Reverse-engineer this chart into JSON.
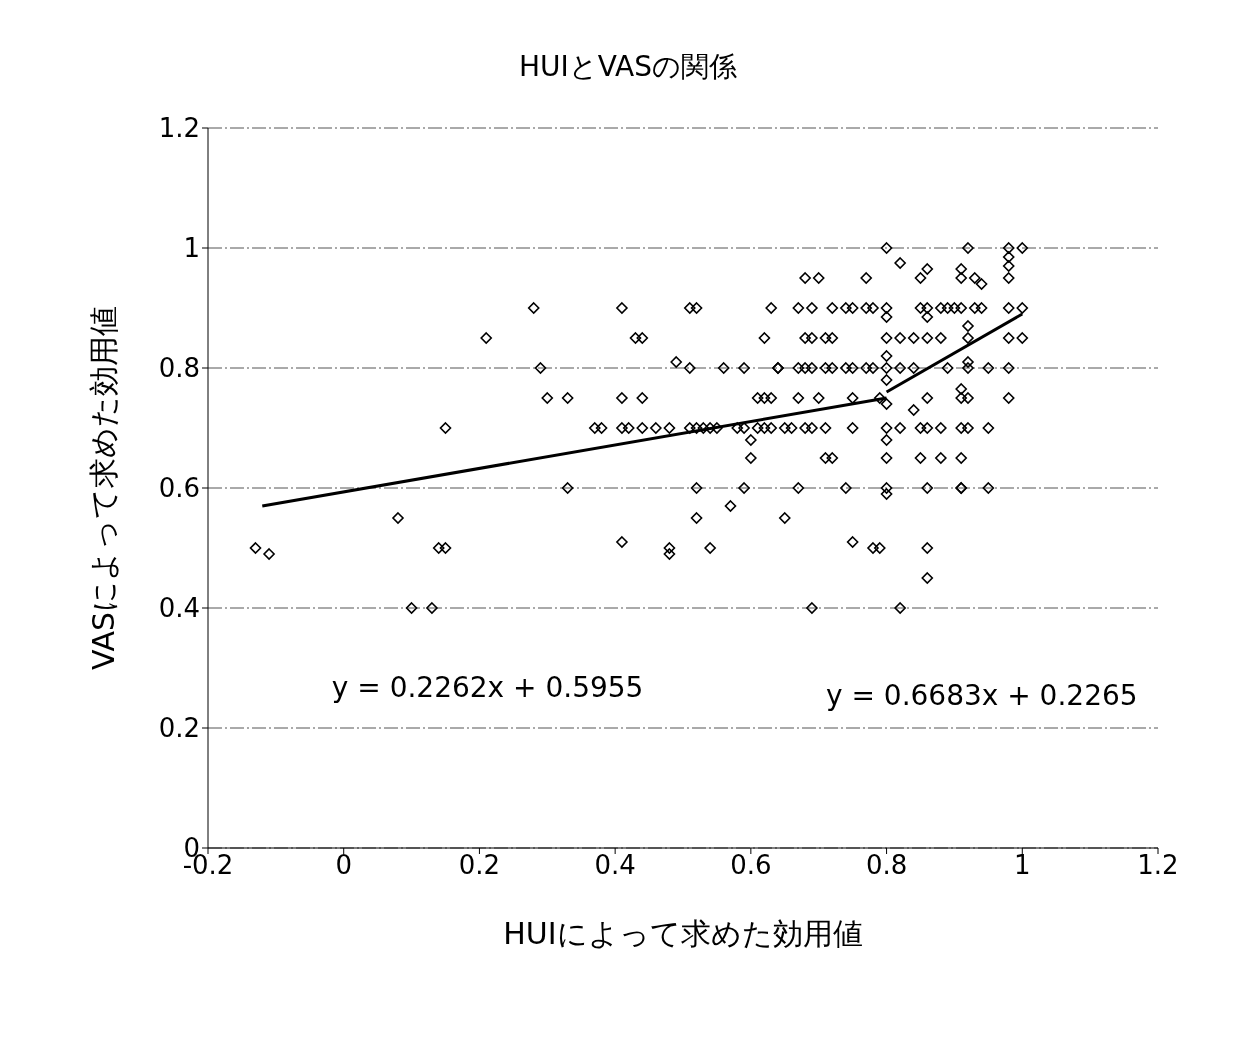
{
  "chart_data": {
    "type": "scatter",
    "title": "HUIとVASの関係",
    "xlabel": "HUIによって求めた効用値",
    "ylabel": "VASによって求めた効用値",
    "annotations": [
      "y = 0.2262x + 0.5955",
      "y = 0.6683x + 0.2265"
    ],
    "xlim": [
      -0.2,
      1.2
    ],
    "xticks": [
      -0.2,
      0,
      0.2,
      0.4,
      0.6,
      0.8,
      1,
      1.2
    ],
    "ylim": [
      0,
      1.2
    ],
    "yticks": [
      0,
      0.2,
      0.4,
      0.6,
      0.8,
      1,
      1.2
    ],
    "grid": "y",
    "series": [
      {
        "color": "#000000",
        "marker": "diamond",
        "x": [
          0.8,
          0.92,
          0.98,
          1.0,
          0.98,
          0.98,
          0.82,
          0.68,
          0.7,
          0.77,
          0.86,
          0.85,
          0.91,
          0.91,
          0.93,
          0.94,
          0.98,
          0.28,
          0.41,
          0.51,
          0.52,
          0.63,
          0.67,
          0.69,
          0.72,
          0.74,
          0.75,
          0.77,
          0.78,
          0.8,
          0.85,
          0.86,
          0.88,
          0.89,
          0.9,
          0.91,
          0.93,
          0.94,
          0.98,
          1.0,
          0.8,
          0.86,
          0.21,
          0.43,
          0.44,
          0.62,
          0.68,
          0.69,
          0.71,
          0.72,
          0.8,
          0.82,
          0.84,
          0.86,
          0.88,
          0.92,
          0.92,
          0.98,
          1.0,
          0.29,
          0.49,
          0.51,
          0.56,
          0.59,
          0.64,
          0.64,
          0.67,
          0.68,
          0.69,
          0.71,
          0.72,
          0.74,
          0.75,
          0.77,
          0.78,
          0.8,
          0.82,
          0.84,
          0.92,
          0.89,
          0.92,
          0.95,
          0.98,
          0.8,
          0.8,
          0.3,
          0.33,
          0.41,
          0.44,
          0.61,
          0.62,
          0.63,
          0.67,
          0.7,
          0.75,
          0.79,
          0.8,
          0.84,
          0.86,
          0.91,
          0.91,
          0.92,
          0.98,
          0.15,
          0.37,
          0.38,
          0.41,
          0.42,
          0.44,
          0.46,
          0.48,
          0.51,
          0.52,
          0.53,
          0.54,
          0.55,
          0.58,
          0.59,
          0.61,
          0.62,
          0.63,
          0.65,
          0.66,
          0.68,
          0.69,
          0.71,
          0.75,
          0.8,
          0.82,
          0.85,
          0.86,
          0.88,
          0.91,
          0.92,
          0.95,
          0.6,
          0.8,
          0.6,
          0.71,
          0.72,
          0.8,
          0.85,
          0.88,
          0.91,
          0.33,
          0.52,
          0.59,
          0.67,
          0.74,
          0.8,
          0.8,
          0.86,
          0.91,
          0.91,
          0.95,
          0.08,
          0.52,
          0.65,
          0.57,
          -0.13,
          -0.11,
          0.14,
          0.15,
          0.41,
          0.48,
          0.48,
          0.54,
          0.75,
          0.78,
          0.79,
          0.86,
          0.86,
          0.1,
          0.13,
          0.69,
          0.82
        ],
        "values": [
          1,
          1,
          1,
          1,
          0.985,
          0.97,
          0.975,
          0.95,
          0.95,
          0.95,
          0.965,
          0.95,
          0.965,
          0.95,
          0.95,
          0.94,
          0.95,
          0.9,
          0.9,
          0.9,
          0.9,
          0.9,
          0.9,
          0.9,
          0.9,
          0.9,
          0.9,
          0.9,
          0.9,
          0.9,
          0.9,
          0.9,
          0.9,
          0.9,
          0.9,
          0.9,
          0.9,
          0.9,
          0.9,
          0.9,
          0.885,
          0.885,
          0.85,
          0.85,
          0.85,
          0.85,
          0.85,
          0.85,
          0.85,
          0.85,
          0.85,
          0.85,
          0.85,
          0.85,
          0.85,
          0.85,
          0.87,
          0.85,
          0.85,
          0.8,
          0.81,
          0.8,
          0.8,
          0.8,
          0.8,
          0.8,
          0.8,
          0.8,
          0.8,
          0.8,
          0.8,
          0.8,
          0.8,
          0.8,
          0.8,
          0.8,
          0.8,
          0.8,
          0.81,
          0.8,
          0.8,
          0.8,
          0.8,
          0.82,
          0.78,
          0.75,
          0.75,
          0.75,
          0.75,
          0.75,
          0.75,
          0.75,
          0.75,
          0.75,
          0.75,
          0.75,
          0.74,
          0.73,
          0.75,
          0.75,
          0.765,
          0.75,
          0.75,
          0.7,
          0.7,
          0.7,
          0.7,
          0.7,
          0.7,
          0.7,
          0.7,
          0.7,
          0.7,
          0.7,
          0.7,
          0.7,
          0.7,
          0.7,
          0.7,
          0.7,
          0.7,
          0.7,
          0.7,
          0.7,
          0.7,
          0.7,
          0.7,
          0.7,
          0.7,
          0.7,
          0.7,
          0.7,
          0.7,
          0.7,
          0.7,
          0.68,
          0.68,
          0.65,
          0.65,
          0.65,
          0.65,
          0.65,
          0.65,
          0.65,
          0.6,
          0.6,
          0.6,
          0.6,
          0.6,
          0.6,
          0.59,
          0.6,
          0.6,
          0.6,
          0.6,
          0.55,
          0.55,
          0.55,
          0.57,
          0.5,
          0.49,
          0.5,
          0.5,
          0.51,
          0.5,
          0.49,
          0.5,
          0.51,
          0.5,
          0.5,
          0.5,
          0.45,
          0.4,
          0.4,
          0.4,
          0.4
        ]
      },
      {
        "type": "line",
        "color": "#000000",
        "marker": "none",
        "x": [
          -0.12,
          0.8
        ],
        "values": [
          0.57,
          0.75
        ]
      },
      {
        "type": "line",
        "color": "#000000",
        "marker": "none",
        "x": [
          0.8,
          1.0
        ],
        "values": [
          0.76,
          0.89
        ]
      }
    ]
  }
}
